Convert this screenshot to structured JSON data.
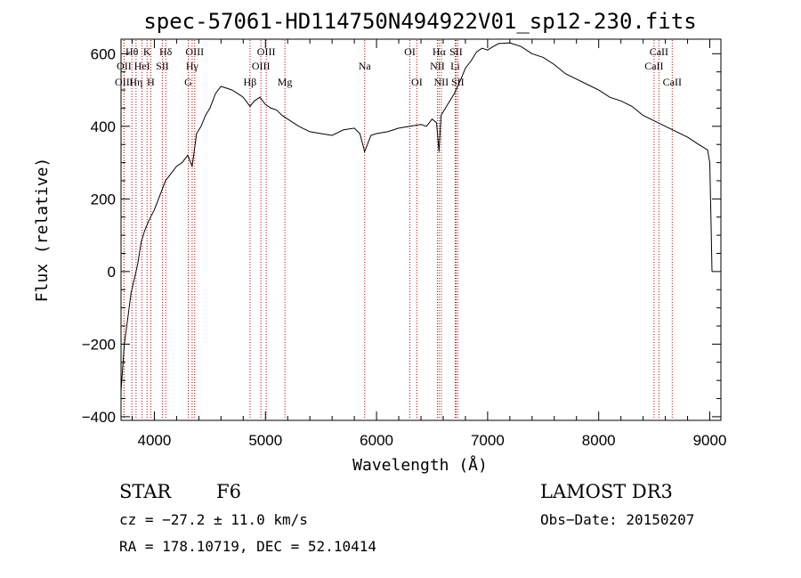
{
  "chart_data": {
    "type": "line",
    "title": "spec-57061-HD114750N494922V01_sp12-230.fits",
    "xlabel": "Wavelength (Å)",
    "ylabel": "Flux (relative)",
    "xlim": [
      3700,
      9100
    ],
    "ylim": [
      -410,
      640
    ],
    "xticks": [
      4000,
      5000,
      6000,
      7000,
      8000,
      9000
    ],
    "xtick_labels": [
      "4000",
      "5000",
      "6000",
      "7000",
      "8000",
      "9000"
    ],
    "yticks": [
      -400,
      -200,
      0,
      200,
      400,
      600
    ],
    "ytick_labels": [
      "−400",
      "−200",
      "0",
      "200",
      "400",
      "600"
    ],
    "spectrum": {
      "x": [
        3700,
        3730,
        3760,
        3790,
        3820,
        3850,
        3880,
        3910,
        3950,
        4000,
        4050,
        4100,
        4150,
        4200,
        4250,
        4300,
        4340,
        4380,
        4420,
        4460,
        4500,
        4550,
        4600,
        4650,
        4700,
        4750,
        4800,
        4861,
        4900,
        4950,
        5000,
        5050,
        5100,
        5150,
        5200,
        5300,
        5400,
        5500,
        5600,
        5700,
        5800,
        5850,
        5893,
        5950,
        6000,
        6100,
        6200,
        6300,
        6400,
        6450,
        6500,
        6540,
        6563,
        6580,
        6620,
        6700,
        6760,
        6800,
        6850,
        6900,
        6950,
        7000,
        7050,
        7100,
        7200,
        7300,
        7400,
        7500,
        7600,
        7700,
        7800,
        7900,
        8000,
        8100,
        8200,
        8300,
        8400,
        8500,
        8600,
        8700,
        8800,
        8900,
        8980,
        9000,
        9010,
        9020
      ],
      "y": [
        -330,
        -200,
        -130,
        -60,
        -20,
        20,
        80,
        110,
        140,
        170,
        210,
        250,
        270,
        290,
        300,
        320,
        290,
        380,
        400,
        430,
        450,
        490,
        510,
        505,
        500,
        490,
        480,
        455,
        470,
        480,
        460,
        450,
        445,
        430,
        420,
        400,
        385,
        380,
        375,
        390,
        395,
        380,
        330,
        375,
        380,
        385,
        395,
        400,
        405,
        400,
        420,
        410,
        330,
        430,
        450,
        490,
        530,
        560,
        580,
        605,
        615,
        610,
        620,
        628,
        630,
        620,
        600,
        590,
        570,
        545,
        530,
        515,
        500,
        480,
        470,
        455,
        430,
        415,
        400,
        385,
        370,
        350,
        335,
        300,
        150,
        0
      ]
    },
    "spectral_lines": [
      {
        "name": "Hθ",
        "wavelength": 3798,
        "row": 1
      },
      {
        "name": "OII",
        "wavelength": 3727,
        "row": 2
      },
      {
        "name": "OIII",
        "wavelength": 3727,
        "row": 3
      },
      {
        "name": "K",
        "wavelength": 3934,
        "row": 1
      },
      {
        "name": "HeI",
        "wavelength": 3889,
        "row": 2
      },
      {
        "name": "Hη",
        "wavelength": 3835,
        "row": 3
      },
      {
        "name": "H",
        "wavelength": 3968,
        "row": 3
      },
      {
        "name": "Hδ",
        "wavelength": 4102,
        "row": 1
      },
      {
        "name": "SII",
        "wavelength": 4072,
        "row": 2
      },
      {
        "name": "OIII",
        "wavelength": 4363,
        "row": 1
      },
      {
        "name": "Hγ",
        "wavelength": 4340,
        "row": 2
      },
      {
        "name": "G",
        "wavelength": 4305,
        "row": 3
      },
      {
        "name": "Hβ",
        "wavelength": 4861,
        "row": 3
      },
      {
        "name": "OIII",
        "wavelength": 5007,
        "row": 1
      },
      {
        "name": "OIII",
        "wavelength": 4959,
        "row": 2
      },
      {
        "name": "Mg",
        "wavelength": 5175,
        "row": 3
      },
      {
        "name": "Na",
        "wavelength": 5893,
        "row": 2
      },
      {
        "name": "OI",
        "wavelength": 6300,
        "row": 1
      },
      {
        "name": "OI",
        "wavelength": 6363,
        "row": 3
      },
      {
        "name": "Hα",
        "wavelength": 6563,
        "row": 1
      },
      {
        "name": "NII",
        "wavelength": 6548,
        "row": 2
      },
      {
        "name": "NII",
        "wavelength": 6583,
        "row": 3
      },
      {
        "name": "SII",
        "wavelength": 6716,
        "row": 1
      },
      {
        "name": "Li",
        "wavelength": 6708,
        "row": 2
      },
      {
        "name": "SII",
        "wavelength": 6731,
        "row": 3
      },
      {
        "name": "CaII",
        "wavelength": 8542,
        "row": 1
      },
      {
        "name": "CaII",
        "wavelength": 8498,
        "row": 2
      },
      {
        "name": "CaII",
        "wavelength": 8662,
        "row": 3
      }
    ]
  },
  "info": {
    "class_label": "STAR",
    "subclass": "F6",
    "cz": "cz = −27.2 ± 11.0 km/s",
    "coords": "RA = 178.10719, DEC =  52.10414",
    "survey": "LAMOST DR3",
    "obs_date": "Obs−Date: 20150207"
  },
  "colors": {
    "spectrum": "#000000",
    "line_markers": "#cc0000"
  }
}
